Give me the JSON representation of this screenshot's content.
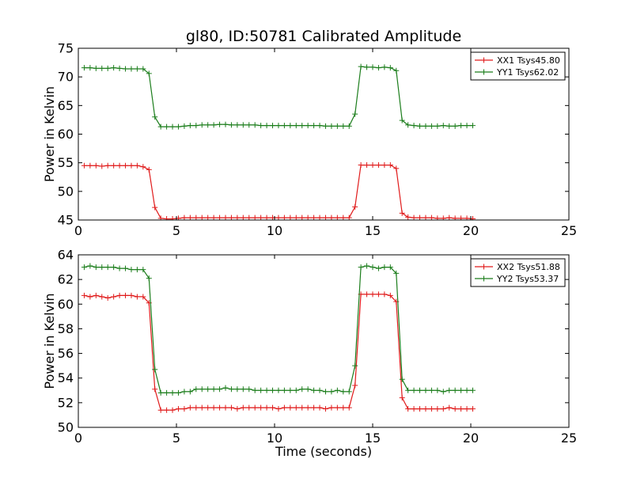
{
  "figure": {
    "title": "gl80, ID:50781 Calibrated Amplitude"
  },
  "chart_data": [
    {
      "type": "line",
      "title": "gl80, ID:50781 Calibrated Amplitude",
      "xlabel": "",
      "ylabel": "Power in Kelvin",
      "xlim": [
        0,
        25
      ],
      "ylim": [
        45,
        75
      ],
      "xticks": [
        0,
        5,
        10,
        15,
        20,
        25
      ],
      "yticks": [
        45,
        50,
        55,
        60,
        65,
        70,
        75
      ],
      "grid": false,
      "legend": "top-right",
      "series": [
        {
          "name": "XX1 Tsys45.80",
          "color": "#e01b1b",
          "x": [
            0.3,
            0.6,
            0.9,
            1.2,
            1.5,
            1.8,
            2.1,
            2.4,
            2.7,
            3.0,
            3.3,
            3.6,
            3.9,
            4.2,
            4.5,
            4.8,
            5.1,
            5.4,
            5.7,
            6.0,
            6.3,
            6.6,
            6.9,
            7.2,
            7.5,
            7.8,
            8.1,
            8.4,
            8.7,
            9.0,
            9.3,
            9.6,
            9.9,
            10.2,
            10.5,
            10.8,
            11.1,
            11.4,
            11.7,
            12.0,
            12.3,
            12.6,
            12.9,
            13.2,
            13.5,
            13.8,
            14.1,
            14.4,
            14.7,
            15.0,
            15.3,
            15.6,
            15.9,
            16.2,
            16.5,
            16.8,
            17.1,
            17.4,
            17.7,
            18.0,
            18.3,
            18.6,
            18.9,
            19.2,
            19.5,
            19.8,
            20.1
          ],
          "y": [
            54.5,
            54.5,
            54.5,
            54.4,
            54.5,
            54.5,
            54.5,
            54.5,
            54.5,
            54.5,
            54.3,
            53.8,
            47.2,
            45.3,
            45.2,
            45.2,
            45.3,
            45.4,
            45.4,
            45.4,
            45.4,
            45.4,
            45.4,
            45.4,
            45.4,
            45.4,
            45.4,
            45.4,
            45.4,
            45.4,
            45.4,
            45.4,
            45.4,
            45.4,
            45.4,
            45.4,
            45.4,
            45.4,
            45.4,
            45.4,
            45.4,
            45.4,
            45.4,
            45.4,
            45.4,
            45.4,
            47.3,
            54.6,
            54.6,
            54.6,
            54.6,
            54.6,
            54.6,
            54.0,
            46.2,
            45.5,
            45.4,
            45.4,
            45.4,
            45.4,
            45.3,
            45.3,
            45.4,
            45.3,
            45.3,
            45.3,
            45.2
          ]
        },
        {
          "name": "YY1 Tsys62.02",
          "color": "#1b7d1b",
          "x": [
            0.3,
            0.6,
            0.9,
            1.2,
            1.5,
            1.8,
            2.1,
            2.4,
            2.7,
            3.0,
            3.3,
            3.6,
            3.9,
            4.2,
            4.5,
            4.8,
            5.1,
            5.4,
            5.7,
            6.0,
            6.3,
            6.6,
            6.9,
            7.2,
            7.5,
            7.8,
            8.1,
            8.4,
            8.7,
            9.0,
            9.3,
            9.6,
            9.9,
            10.2,
            10.5,
            10.8,
            11.1,
            11.4,
            11.7,
            12.0,
            12.3,
            12.6,
            12.9,
            13.2,
            13.5,
            13.8,
            14.1,
            14.4,
            14.7,
            15.0,
            15.3,
            15.6,
            15.9,
            16.2,
            16.5,
            16.8,
            17.1,
            17.4,
            17.7,
            18.0,
            18.3,
            18.6,
            18.9,
            19.2,
            19.5,
            19.8,
            20.1
          ],
          "y": [
            71.6,
            71.6,
            71.5,
            71.5,
            71.5,
            71.6,
            71.5,
            71.4,
            71.4,
            71.4,
            71.4,
            70.6,
            63.0,
            61.3,
            61.3,
            61.3,
            61.3,
            61.4,
            61.5,
            61.5,
            61.6,
            61.6,
            61.6,
            61.7,
            61.7,
            61.6,
            61.6,
            61.6,
            61.6,
            61.6,
            61.5,
            61.5,
            61.5,
            61.5,
            61.5,
            61.5,
            61.5,
            61.5,
            61.5,
            61.5,
            61.5,
            61.4,
            61.4,
            61.4,
            61.4,
            61.4,
            63.5,
            71.8,
            71.7,
            71.7,
            71.6,
            71.7,
            71.6,
            71.1,
            62.4,
            61.6,
            61.5,
            61.4,
            61.4,
            61.4,
            61.4,
            61.5,
            61.4,
            61.4,
            61.5,
            61.5,
            61.5
          ]
        }
      ]
    },
    {
      "type": "line",
      "title": "",
      "xlabel": "Time (seconds)",
      "ylabel": "Power in Kelvin",
      "xlim": [
        0,
        25
      ],
      "ylim": [
        50,
        64
      ],
      "xticks": [
        0,
        5,
        10,
        15,
        20,
        25
      ],
      "yticks": [
        50,
        52,
        54,
        56,
        58,
        60,
        62,
        64
      ],
      "grid": false,
      "legend": "top-right",
      "series": [
        {
          "name": "XX2 Tsys51.88",
          "color": "#e01b1b",
          "x": [
            0.3,
            0.6,
            0.9,
            1.2,
            1.5,
            1.8,
            2.1,
            2.4,
            2.7,
            3.0,
            3.3,
            3.6,
            3.9,
            4.2,
            4.5,
            4.8,
            5.1,
            5.4,
            5.7,
            6.0,
            6.3,
            6.6,
            6.9,
            7.2,
            7.5,
            7.8,
            8.1,
            8.4,
            8.7,
            9.0,
            9.3,
            9.6,
            9.9,
            10.2,
            10.5,
            10.8,
            11.1,
            11.4,
            11.7,
            12.0,
            12.3,
            12.6,
            12.9,
            13.2,
            13.5,
            13.8,
            14.1,
            14.4,
            14.7,
            15.0,
            15.3,
            15.6,
            15.9,
            16.2,
            16.5,
            16.8,
            17.1,
            17.4,
            17.7,
            18.0,
            18.3,
            18.6,
            18.9,
            19.2,
            19.5,
            19.8,
            20.1
          ],
          "y": [
            60.7,
            60.6,
            60.7,
            60.6,
            60.5,
            60.6,
            60.7,
            60.7,
            60.7,
            60.6,
            60.6,
            60.1,
            53.1,
            51.4,
            51.4,
            51.4,
            51.5,
            51.5,
            51.6,
            51.6,
            51.6,
            51.6,
            51.6,
            51.6,
            51.6,
            51.6,
            51.5,
            51.6,
            51.6,
            51.6,
            51.6,
            51.6,
            51.6,
            51.5,
            51.6,
            51.6,
            51.6,
            51.6,
            51.6,
            51.6,
            51.6,
            51.5,
            51.6,
            51.6,
            51.6,
            51.6,
            53.4,
            60.8,
            60.8,
            60.8,
            60.8,
            60.8,
            60.7,
            60.2,
            52.4,
            51.5,
            51.5,
            51.5,
            51.5,
            51.5,
            51.5,
            51.5,
            51.6,
            51.5,
            51.5,
            51.5,
            51.5
          ]
        },
        {
          "name": "YY2 Tsys53.37",
          "color": "#1b7d1b",
          "x": [
            0.3,
            0.6,
            0.9,
            1.2,
            1.5,
            1.8,
            2.1,
            2.4,
            2.7,
            3.0,
            3.3,
            3.6,
            3.9,
            4.2,
            4.5,
            4.8,
            5.1,
            5.4,
            5.7,
            6.0,
            6.3,
            6.6,
            6.9,
            7.2,
            7.5,
            7.8,
            8.1,
            8.4,
            8.7,
            9.0,
            9.3,
            9.6,
            9.9,
            10.2,
            10.5,
            10.8,
            11.1,
            11.4,
            11.7,
            12.0,
            12.3,
            12.6,
            12.9,
            13.2,
            13.5,
            13.8,
            14.1,
            14.4,
            14.7,
            15.0,
            15.3,
            15.6,
            15.9,
            16.2,
            16.5,
            16.8,
            17.1,
            17.4,
            17.7,
            18.0,
            18.3,
            18.6,
            18.9,
            19.2,
            19.5,
            19.8,
            20.1
          ],
          "y": [
            63.0,
            63.1,
            63.0,
            63.0,
            63.0,
            63.0,
            62.9,
            62.9,
            62.8,
            62.8,
            62.8,
            62.1,
            54.7,
            52.8,
            52.8,
            52.8,
            52.8,
            52.9,
            52.9,
            53.1,
            53.1,
            53.1,
            53.1,
            53.1,
            53.2,
            53.1,
            53.1,
            53.1,
            53.1,
            53.0,
            53.0,
            53.0,
            53.0,
            53.0,
            53.0,
            53.0,
            53.0,
            53.1,
            53.1,
            53.0,
            53.0,
            52.9,
            52.9,
            53.0,
            52.9,
            52.9,
            55.0,
            63.0,
            63.1,
            63.0,
            62.9,
            63.0,
            63.0,
            62.5,
            53.9,
            53.0,
            53.0,
            53.0,
            53.0,
            53.0,
            53.0,
            52.9,
            53.0,
            53.0,
            53.0,
            53.0,
            53.0
          ]
        }
      ]
    }
  ]
}
